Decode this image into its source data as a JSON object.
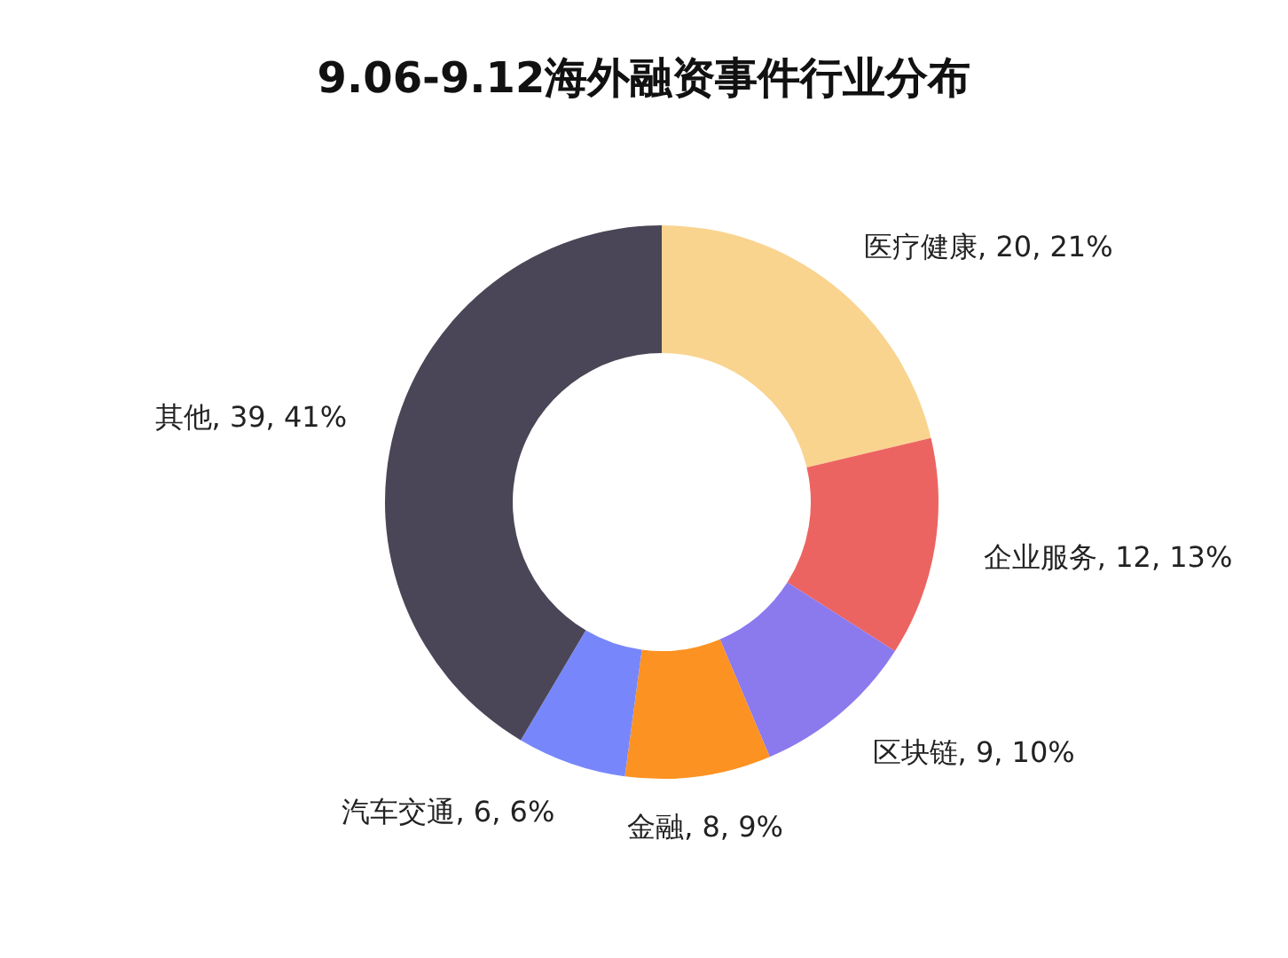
{
  "chart_data": {
    "type": "donut",
    "title": "9.06-9.12海外融资事件行业分布",
    "categories": [
      "医疗健康",
      "企业服务",
      "区块链",
      "金融",
      "汽车交通",
      "其他"
    ],
    "values": [
      20,
      12,
      9,
      8,
      6,
      39
    ],
    "value_labels": [
      "20, 21%",
      "12, 13%",
      "9, 10%",
      "8, 9%",
      "6, 6%",
      "39, 41%"
    ],
    "colors": [
      "#f9d48f",
      "#ec6461",
      "#8b79ee",
      "#fc9222",
      "#7787fb",
      "#4a4657"
    ],
    "legend": false
  }
}
